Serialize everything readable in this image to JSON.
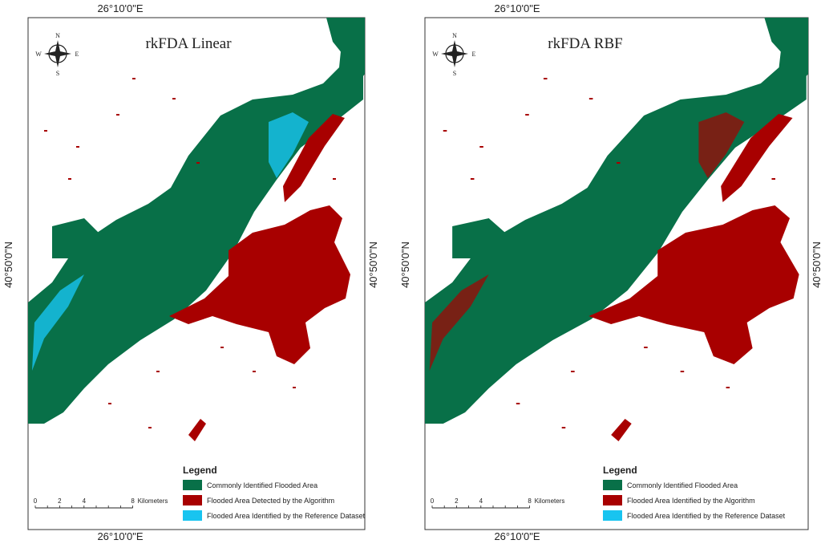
{
  "panels": [
    {
      "title": "rkFDA Linear",
      "top_label": "26°10'0\"E",
      "bottom_label": "26°10'0\"E",
      "left_label": "40°50'0\"N",
      "right_label": "40°50'0\"N",
      "compass": {
        "n": "N",
        "s": "S",
        "e": "E",
        "w": "W"
      },
      "legend": {
        "title": "Legend",
        "items": [
          {
            "label": "Commonly Identified Flooded Area",
            "color": "#087048"
          },
          {
            "label": "Flooded Area Detected by the Algorithm",
            "color": "#a80000"
          },
          {
            "label": "Flooded Area Identified by the Reference Dataset",
            "color": "#18c4f0"
          }
        ]
      },
      "scale": {
        "ticks": [
          "0",
          "2",
          "4",
          "8"
        ],
        "unit": "Kilometers"
      }
    },
    {
      "title": "rkFDA RBF",
      "top_label": "26°10'0\"E",
      "bottom_label": "26°10'0\"E",
      "left_label": "40°50'0\"N",
      "right_label": "40°50'0\"N",
      "compass": {
        "n": "N",
        "s": "S",
        "e": "E",
        "w": "W"
      },
      "legend": {
        "title": "Legend",
        "items": [
          {
            "label": "Commonly Identified Flooded Area",
            "color": "#087048"
          },
          {
            "label": "Flooded Area Identified by the Algorithm",
            "color": "#a80000"
          },
          {
            "label": "Flooded Area Identified by the Reference Dataset",
            "color": "#18c4f0"
          }
        ]
      },
      "scale": {
        "ticks": [
          "0",
          "2",
          "4",
          "8"
        ],
        "unit": "Kilometers"
      }
    }
  ]
}
